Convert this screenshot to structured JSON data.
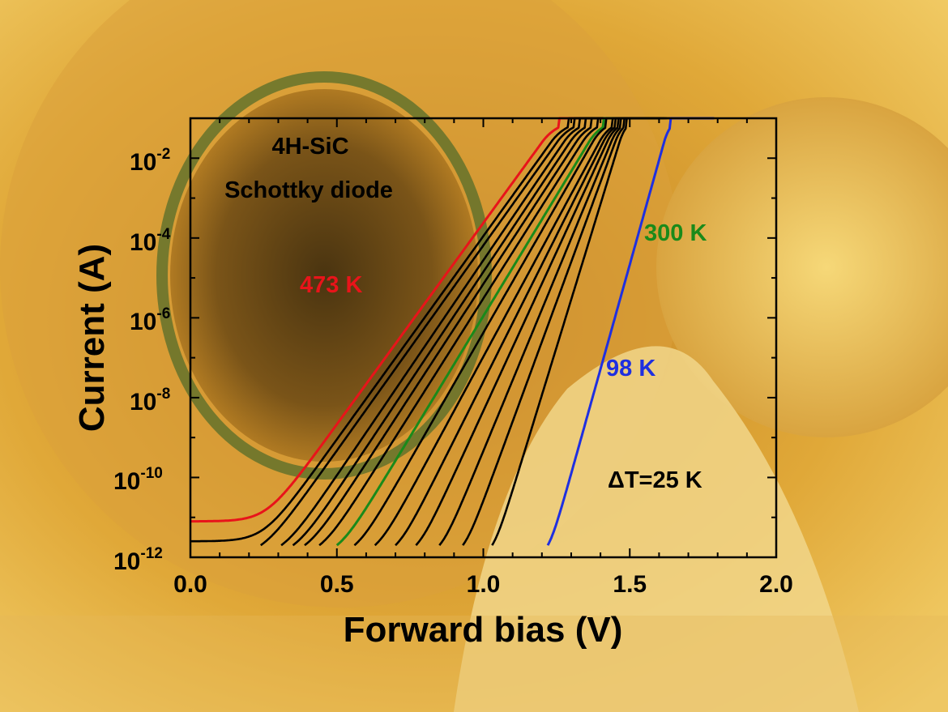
{
  "chart_data": {
    "type": "line",
    "title": "",
    "xlabel": "Forward bias (V)",
    "ylabel": "Current (A)",
    "xlim": [
      0.0,
      2.0
    ],
    "ylim_log10": [
      -12,
      -1
    ],
    "y_scale": "log",
    "grid": false,
    "x_ticks": [
      "0.0",
      "0.5",
      "1.0",
      "1.5",
      "2.0"
    ],
    "y_ticks": [
      {
        "base": "10",
        "exp": "-2",
        "log10": -2
      },
      {
        "base": "10",
        "exp": "-4",
        "log10": -4
      },
      {
        "base": "10",
        "exp": "-6",
        "log10": -6
      },
      {
        "base": "10",
        "exp": "-8",
        "log10": -8
      },
      {
        "base": "10",
        "exp": "-10",
        "log10": -10
      },
      {
        "base": "10",
        "exp": "-12",
        "log10": -12
      }
    ],
    "annotations": {
      "device_line1": "4H-SiC",
      "device_line2": "Schottky diode",
      "hot_label": "473 K",
      "room_label": "300 K",
      "cold_label": "98 K",
      "step_label": "ΔT=25 K"
    },
    "colors": {
      "hot": "#e8141a",
      "room": "#1a8a1a",
      "cold": "#1f2fe0",
      "other": "#000000"
    },
    "series": [
      {
        "temperature_K": 473,
        "color_key": "hot",
        "onset_V": 0.17,
        "sat_V": 1.26,
        "leak_log10": -11.1
      },
      {
        "temperature_K": 448,
        "color_key": "other",
        "onset_V": 0.21,
        "sat_V": 1.29,
        "leak_log10": -11.6
      },
      {
        "temperature_K": 423,
        "color_key": "other",
        "onset_V": 0.24,
        "sat_V": 1.31,
        "leak_log10": -12
      },
      {
        "temperature_K": 398,
        "color_key": "other",
        "onset_V": 0.31,
        "sat_V": 1.33,
        "leak_log10": -12
      },
      {
        "temperature_K": 373,
        "color_key": "other",
        "onset_V": 0.35,
        "sat_V": 1.35,
        "leak_log10": -12
      },
      {
        "temperature_K": 348,
        "color_key": "other",
        "onset_V": 0.39,
        "sat_V": 1.37,
        "leak_log10": -12
      },
      {
        "temperature_K": 323,
        "color_key": "other",
        "onset_V": 0.44,
        "sat_V": 1.39,
        "leak_log10": -12
      },
      {
        "temperature_K": 300,
        "color_key": "room",
        "onset_V": 0.5,
        "sat_V": 1.41,
        "leak_log10": -12
      },
      {
        "temperature_K": 275,
        "color_key": "other",
        "onset_V": 0.56,
        "sat_V": 1.42,
        "leak_log10": -12
      },
      {
        "temperature_K": 250,
        "color_key": "other",
        "onset_V": 0.63,
        "sat_V": 1.44,
        "leak_log10": -12
      },
      {
        "temperature_K": 225,
        "color_key": "other",
        "onset_V": 0.7,
        "sat_V": 1.45,
        "leak_log10": -12
      },
      {
        "temperature_K": 200,
        "color_key": "other",
        "onset_V": 0.77,
        "sat_V": 1.46,
        "leak_log10": -12
      },
      {
        "temperature_K": 175,
        "color_key": "other",
        "onset_V": 0.85,
        "sat_V": 1.47,
        "leak_log10": -12
      },
      {
        "temperature_K": 150,
        "color_key": "other",
        "onset_V": 0.93,
        "sat_V": 1.48,
        "leak_log10": -12
      },
      {
        "temperature_K": 125,
        "color_key": "other",
        "onset_V": 1.03,
        "sat_V": 1.49,
        "leak_log10": -12
      },
      {
        "temperature_K": 98,
        "color_key": "cold",
        "onset_V": 1.22,
        "sat_V": 1.64,
        "leak_log10": -12
      }
    ]
  }
}
